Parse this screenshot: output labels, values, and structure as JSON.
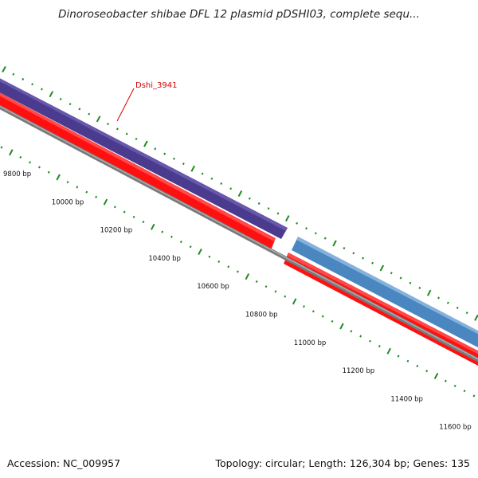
{
  "title": "Dinoroseobacter shibae DFL 12 plasmid pDSHI03, complete sequ...",
  "footer": {
    "accession": "Accession: NC_009957",
    "summary": "Topology: circular; Length: 126,304 bp; Genes: 135"
  },
  "gene_label": "Dshi_3941",
  "scale_labels": [
    "9800 bp",
    "10000 bp",
    "10200 bp",
    "10400 bp",
    "10600 bp",
    "10800 bp",
    "11000 bp",
    "11200 bp",
    "11400 bp",
    "11600 bp"
  ],
  "colors": {
    "background": "#ffffff",
    "gene_purple": "#4b3b8f",
    "gene_blue": "#4a86c0",
    "cds_red": "#ff1010",
    "backbone_gray": "#7a7a7a",
    "ticks_green": "#1f8a1f",
    "label_red": "#d40000"
  }
}
